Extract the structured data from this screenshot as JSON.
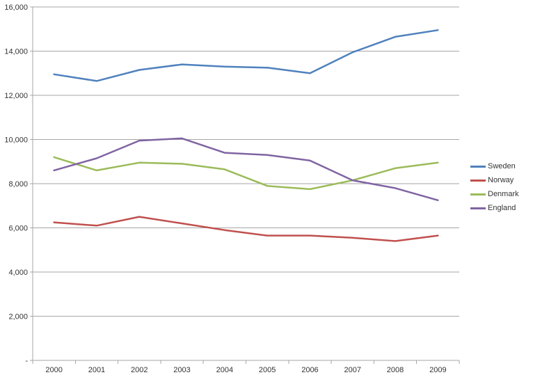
{
  "chart_data": {
    "type": "line",
    "title": "",
    "xlabel": "",
    "ylabel": "",
    "categories": [
      "2000",
      "2001",
      "2002",
      "2003",
      "2004",
      "2005",
      "2006",
      "2007",
      "2008",
      "2009"
    ],
    "series": [
      {
        "name": "Sweden",
        "color": "#4F81BD",
        "values": [
          12950,
          12650,
          13150,
          13400,
          13300,
          13250,
          13000,
          13950,
          14650,
          14950
        ]
      },
      {
        "name": "Norway",
        "color": "#C0504D",
        "values": [
          6250,
          6100,
          6500,
          6200,
          5900,
          5650,
          5650,
          5550,
          5400,
          5650
        ]
      },
      {
        "name": "Denmark",
        "color": "#9BBB59",
        "values": [
          9200,
          8600,
          8950,
          8900,
          8650,
          7900,
          7750,
          8150,
          8700,
          8950
        ]
      },
      {
        "name": "England",
        "color": "#8064A2",
        "values": [
          8600,
          9150,
          9950,
          10050,
          9400,
          9300,
          9050,
          8150,
          7800,
          7250
        ]
      }
    ],
    "ylim": [
      0,
      16000
    ],
    "ytick_interval": 2000,
    "ytick_labels": [
      "-",
      "2,000",
      "4,000",
      "6,000",
      "8,000",
      "10,000",
      "12,000",
      "14,000",
      "16,000"
    ],
    "legend_position": "right",
    "grid": "horizontal",
    "gridline_color": "#A6A6A6",
    "axis_color": "#A6A6A6",
    "text_color": "#333333",
    "background_color": "#FFFFFF"
  }
}
